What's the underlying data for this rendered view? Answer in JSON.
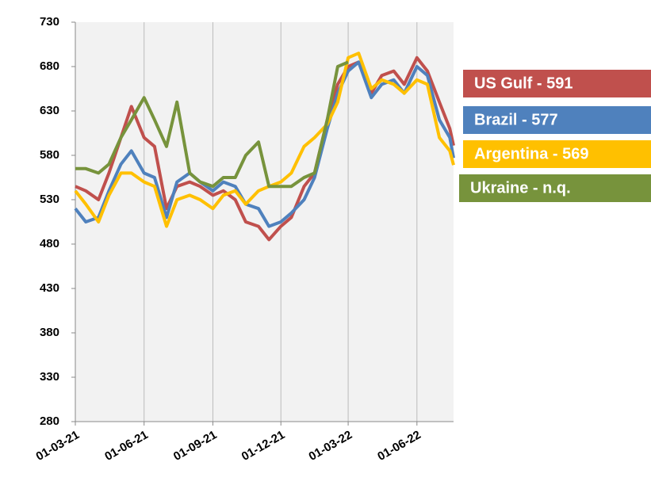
{
  "chart_data": {
    "type": "line",
    "x": [
      "01-03-21",
      "15-03-21",
      "01-04-21",
      "15-04-21",
      "01-05-21",
      "15-05-21",
      "01-06-21",
      "15-06-21",
      "01-07-21",
      "15-07-21",
      "01-08-21",
      "15-08-21",
      "01-09-21",
      "15-09-21",
      "01-10-21",
      "15-10-21",
      "01-11-21",
      "15-11-21",
      "01-12-21",
      "15-12-21",
      "01-01-22",
      "15-01-22",
      "01-02-22",
      "15-02-22",
      "01-03-22",
      "15-03-22",
      "01-04-22",
      "15-04-22",
      "01-05-22",
      "15-05-22",
      "01-06-22",
      "15-06-22",
      "01-07-22",
      "15-07-22",
      "20-07-22"
    ],
    "series": [
      {
        "name": "US Gulf - 591",
        "color": "#c0504d",
        "values": [
          545,
          540,
          530,
          560,
          600,
          635,
          600,
          590,
          520,
          545,
          550,
          545,
          535,
          540,
          530,
          505,
          500,
          485,
          500,
          510,
          545,
          560,
          620,
          660,
          680,
          685,
          650,
          670,
          675,
          660,
          690,
          675,
          640,
          610,
          591
        ]
      },
      {
        "name": "Brazil - 577",
        "color": "#4f81bd",
        "values": [
          520,
          505,
          510,
          540,
          570,
          585,
          560,
          555,
          510,
          550,
          560,
          550,
          540,
          550,
          545,
          525,
          520,
          500,
          505,
          515,
          530,
          555,
          610,
          650,
          675,
          685,
          645,
          660,
          665,
          650,
          680,
          670,
          620,
          600,
          577
        ]
      },
      {
        "name": "Argentina - 569",
        "color": "#ffc000",
        "values": [
          540,
          525,
          505,
          535,
          560,
          560,
          550,
          545,
          500,
          530,
          535,
          530,
          520,
          535,
          540,
          525,
          540,
          545,
          550,
          560,
          590,
          600,
          615,
          640,
          690,
          695,
          655,
          665,
          660,
          650,
          665,
          660,
          600,
          585,
          569
        ]
      },
      {
        "name": "Ukraine - n.q.",
        "color": "#77933c",
        "values": [
          565,
          565,
          560,
          570,
          600,
          620,
          645,
          620,
          590,
          640,
          560,
          550,
          545,
          555,
          555,
          580,
          595,
          545,
          545,
          545,
          555,
          560,
          620,
          680,
          685,
          null,
          null,
          null,
          null,
          null,
          null,
          null,
          null,
          null,
          null
        ]
      }
    ],
    "xlim": [
      "01-03-21",
      "20-07-22"
    ],
    "xticks": [
      "01-03-21",
      "01-06-21",
      "01-09-21",
      "01-12-21",
      "01-03-22",
      "01-06-22"
    ],
    "ylim": [
      280,
      730
    ],
    "yticks": [
      280,
      330,
      380,
      430,
      480,
      530,
      580,
      630,
      680,
      730
    ],
    "grid": true
  }
}
